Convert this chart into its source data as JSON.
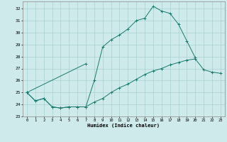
{
  "title": "",
  "xlabel": "Humidex (Indice chaleur)",
  "ylabel": "",
  "bg_color": "#ceeaea",
  "grid_color": "#aad0d0",
  "line_color": "#1a7a6e",
  "xlim": [
    -0.5,
    23.5
  ],
  "ylim": [
    23,
    32.6
  ],
  "yticks": [
    23,
    24,
    25,
    26,
    27,
    28,
    29,
    30,
    31,
    32
  ],
  "xticks": [
    0,
    1,
    2,
    3,
    4,
    5,
    6,
    7,
    8,
    9,
    10,
    11,
    12,
    13,
    14,
    15,
    16,
    17,
    18,
    19,
    20,
    21,
    22,
    23
  ],
  "line1_x": [
    0,
    1,
    2,
    3,
    4,
    5,
    6,
    7,
    8,
    9,
    10,
    11,
    12,
    13,
    14,
    15,
    16,
    17,
    18,
    19,
    20
  ],
  "line1_y": [
    25.0,
    24.3,
    24.5,
    23.8,
    23.7,
    23.8,
    23.8,
    23.8,
    26.0,
    28.8,
    29.4,
    29.8,
    30.3,
    31.0,
    31.2,
    32.2,
    31.8,
    31.6,
    30.7,
    29.3,
    27.9
  ],
  "line2_x": [
    0,
    7
  ],
  "line2_y": [
    25.0,
    27.4
  ],
  "line3_x": [
    0,
    1,
    2,
    3,
    4,
    5,
    6,
    7,
    8,
    9,
    10,
    11,
    12,
    13,
    14,
    15,
    16,
    17,
    18,
    19,
    20,
    21,
    22,
    23
  ],
  "line3_y": [
    25.0,
    24.3,
    24.5,
    23.8,
    23.7,
    23.8,
    23.8,
    23.8,
    24.2,
    24.5,
    25.0,
    25.4,
    25.7,
    26.1,
    26.5,
    26.8,
    27.0,
    27.3,
    27.5,
    27.7,
    27.8,
    26.9,
    26.7,
    26.6
  ]
}
